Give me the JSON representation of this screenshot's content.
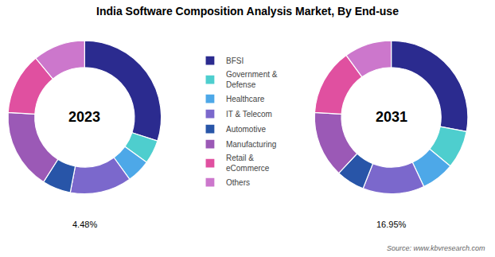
{
  "chart_data": [
    {
      "type": "pie",
      "title": "India Software Composition Analysis Market, By End-use",
      "source": "Source: www.kbvresearch.com",
      "annotations": [
        "2023",
        "4.48%"
      ],
      "categories": [
        "BFSI",
        "Government &\nDefense",
        "Healthcare",
        "IT & Telecom",
        "Automotive",
        "Manufacturing",
        "Retail &\neCommerce",
        "Others"
      ],
      "values": [
        30,
        5,
        5,
        13,
        6,
        17,
        13,
        11
      ],
      "colors": [
        "#2b2b8f",
        "#4ecece",
        "#4da8e8",
        "#7b68cc",
        "#2855a8",
        "#9b59b6",
        "#e050a0",
        "#cc77cc"
      ],
      "legend": "center"
    },
    {
      "type": "pie",
      "annotations": [
        "2031",
        "16.95%"
      ],
      "categories": [
        "BFSI",
        "Government &\nDefense",
        "Healthcare",
        "IT & Telecom",
        "Automotive",
        "Manufacturing",
        "Retail &\neCommerce",
        "Others"
      ],
      "values": [
        28,
        8,
        7,
        13,
        6,
        14,
        14,
        10
      ],
      "colors": [
        "#2b2b8f",
        "#4ecece",
        "#4da8e8",
        "#7b68cc",
        "#2855a8",
        "#9b59b6",
        "#e050a0",
        "#cc77cc"
      ]
    }
  ]
}
